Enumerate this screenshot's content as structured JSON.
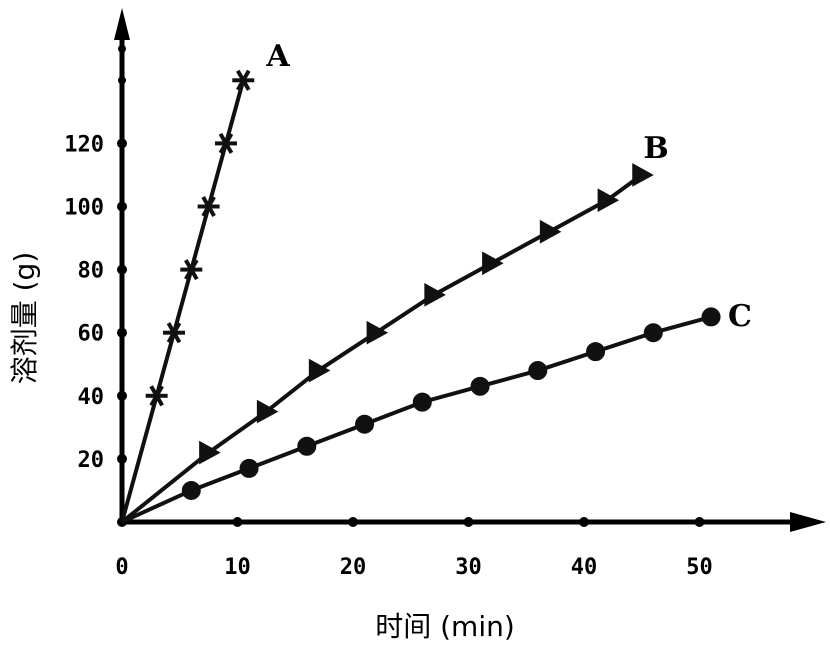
{
  "chart_data": {
    "type": "line",
    "xlabel": "时间 (min)",
    "ylabel": "溶剂量 (g)",
    "xlim": [
      0,
      58
    ],
    "ylim": [
      0,
      160
    ],
    "x_ticks": [
      0,
      10,
      20,
      30,
      40,
      50
    ],
    "y_ticks": [
      20,
      40,
      60,
      80,
      100,
      120
    ],
    "series": [
      {
        "name": "A",
        "marker": "asterisk",
        "x": [
          0,
          3,
          4.5,
          6,
          7.5,
          9,
          10.5
        ],
        "y": [
          0,
          40,
          60,
          80,
          100,
          120,
          140
        ]
      },
      {
        "name": "B",
        "marker": "triangle",
        "x": [
          0,
          7.5,
          12.5,
          17,
          22,
          27,
          32,
          37,
          42,
          45
        ],
        "y": [
          0,
          22,
          35,
          48,
          60,
          72,
          82,
          92,
          102,
          110
        ]
      },
      {
        "name": "C",
        "marker": "circle",
        "x": [
          0,
          6,
          11,
          16,
          21,
          26,
          31,
          36,
          41,
          46,
          51
        ],
        "y": [
          0,
          10,
          17,
          24,
          31,
          38,
          43,
          48,
          54,
          60,
          65
        ]
      }
    ]
  }
}
